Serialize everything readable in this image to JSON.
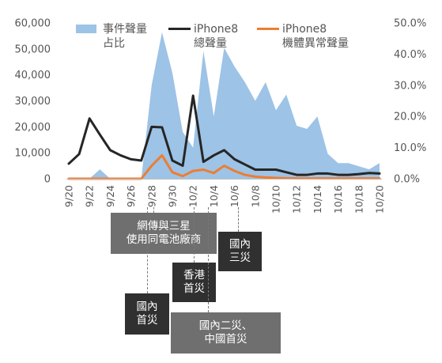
{
  "chart_data": {
    "type": "line",
    "x": [
      "9/20",
      "9/21",
      "9/22",
      "9/23",
      "9/24",
      "9/25",
      "9/26",
      "9/27",
      "9/28",
      "9/29",
      "9/30",
      "10/1",
      "10/2",
      "10/3",
      "10/4",
      "10/5",
      "10/6",
      "10/7",
      "10/8",
      "10/9",
      "10/10",
      "10/11",
      "10/12",
      "10/13",
      "10/14",
      "10/15",
      "10/16",
      "10/17",
      "10/18",
      "10/19",
      "10/20"
    ],
    "x_tick_labels": [
      "9/20",
      "9/22",
      "9/24",
      "9/26",
      "9/28",
      "9/30",
      "10/2",
      "10/4",
      "10/6",
      "10/8",
      "10/10",
      "10/12",
      "10/14",
      "10/16",
      "10/18",
      "10/20"
    ],
    "y_left_ticks": [
      "0",
      "10,000",
      "20,000",
      "30,000",
      "40,000",
      "50,000",
      "60,000"
    ],
    "y_left_lim": [
      0,
      60000
    ],
    "y_right_ticks": [
      "0.0%",
      "10.0%",
      "20.0%",
      "30.0%",
      "40.0%",
      "50.0%"
    ],
    "y_right_lim": [
      0,
      50
    ],
    "series": [
      {
        "name": "事件聲量占比",
        "type": "area",
        "axis": "right",
        "color": "#9dc3e6",
        "values": [
          0,
          0,
          0,
          3,
          0,
          0,
          0,
          0,
          30,
          47,
          34,
          15,
          10,
          41,
          20,
          42,
          36,
          31,
          25,
          31,
          22,
          27,
          17,
          16,
          20,
          8,
          5,
          5,
          4,
          3,
          5
        ]
      },
      {
        "name": "iPhone8總聲量",
        "type": "line",
        "axis": "left",
        "color": "#262626",
        "values": [
          5800,
          9500,
          23200,
          17000,
          11000,
          9000,
          7500,
          7000,
          20000,
          19800,
          7000,
          5000,
          32000,
          6500,
          9000,
          11000,
          7500,
          5500,
          3500,
          3500,
          3500,
          2500,
          1500,
          1500,
          2000,
          2000,
          1500,
          1500,
          1800,
          2200,
          2000
        ]
      },
      {
        "name": "iPhone8機體異常聲量",
        "type": "line",
        "axis": "left",
        "color": "#ed7d31",
        "values": [
          0,
          0,
          0,
          0,
          0,
          0,
          0,
          0,
          5000,
          9000,
          2500,
          1000,
          3000,
          3500,
          2200,
          5000,
          3000,
          1500,
          800,
          500,
          300,
          200,
          100,
          100,
          100,
          100,
          100,
          100,
          100,
          100,
          100
        ]
      }
    ],
    "legend": [
      {
        "line1": "事件聲量",
        "line2": "占比",
        "color": "#9dc3e6",
        "kind": "area"
      },
      {
        "line1": "iPhone8",
        "line2": "總聲量",
        "color": "#262626",
        "kind": "line"
      },
      {
        "line1": "iPhone8",
        "line2": "機體異常聲量",
        "color": "#ed7d31",
        "kind": "line"
      }
    ],
    "legend_position": "top",
    "grid": false,
    "annotations": [
      {
        "label": "網傳與三星\n使用同電池廠商",
        "x": "9/29",
        "style": "light"
      },
      {
        "label": "國內\n三災",
        "x": "10/6",
        "style": "dark"
      },
      {
        "label": "香港\n首災",
        "x": "10/2",
        "style": "dark"
      },
      {
        "label": "國內\n首災",
        "x": "9/28",
        "style": "dark"
      },
      {
        "label": "國內二災、\n中國首災",
        "x": "10/3",
        "style": "light"
      }
    ]
  }
}
